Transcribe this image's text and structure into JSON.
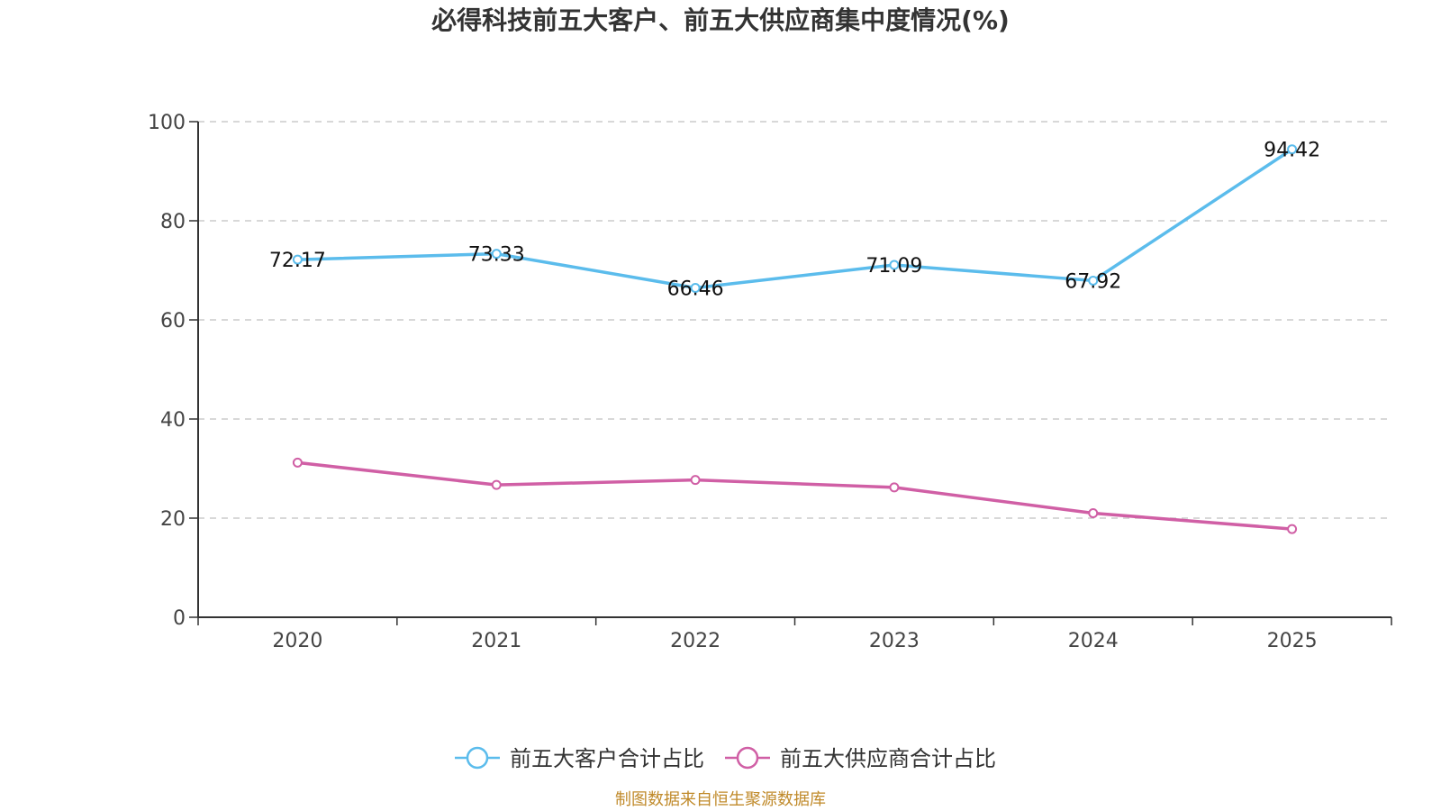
{
  "chart_data": {
    "type": "line",
    "title": "必得科技前五大客户、前五大供应商集中度情况(%)",
    "categories": [
      "2020",
      "2021",
      "2022",
      "2023",
      "2024",
      "2025"
    ],
    "ylim": [
      0,
      100
    ],
    "yticks": [
      0,
      20,
      40,
      60,
      80,
      100
    ],
    "grid": true,
    "legend_position": "bottom",
    "series": [
      {
        "name": "前五大客户合计占比",
        "color": "#5bbcec",
        "values": [
          72.17,
          73.33,
          66.46,
          71.09,
          67.92,
          94.42
        ],
        "labels": [
          "72.17",
          "73.33",
          "66.46",
          "71.09",
          "67.92",
          "94.42"
        ],
        "show_labels": true
      },
      {
        "name": "前五大供应商合计占比",
        "color": "#d05fa5",
        "values": [
          31.2,
          26.7,
          27.7,
          26.2,
          21.0,
          17.8
        ],
        "labels": [],
        "show_labels": false
      }
    ],
    "source": "制图数据来自恒生聚源数据库"
  }
}
